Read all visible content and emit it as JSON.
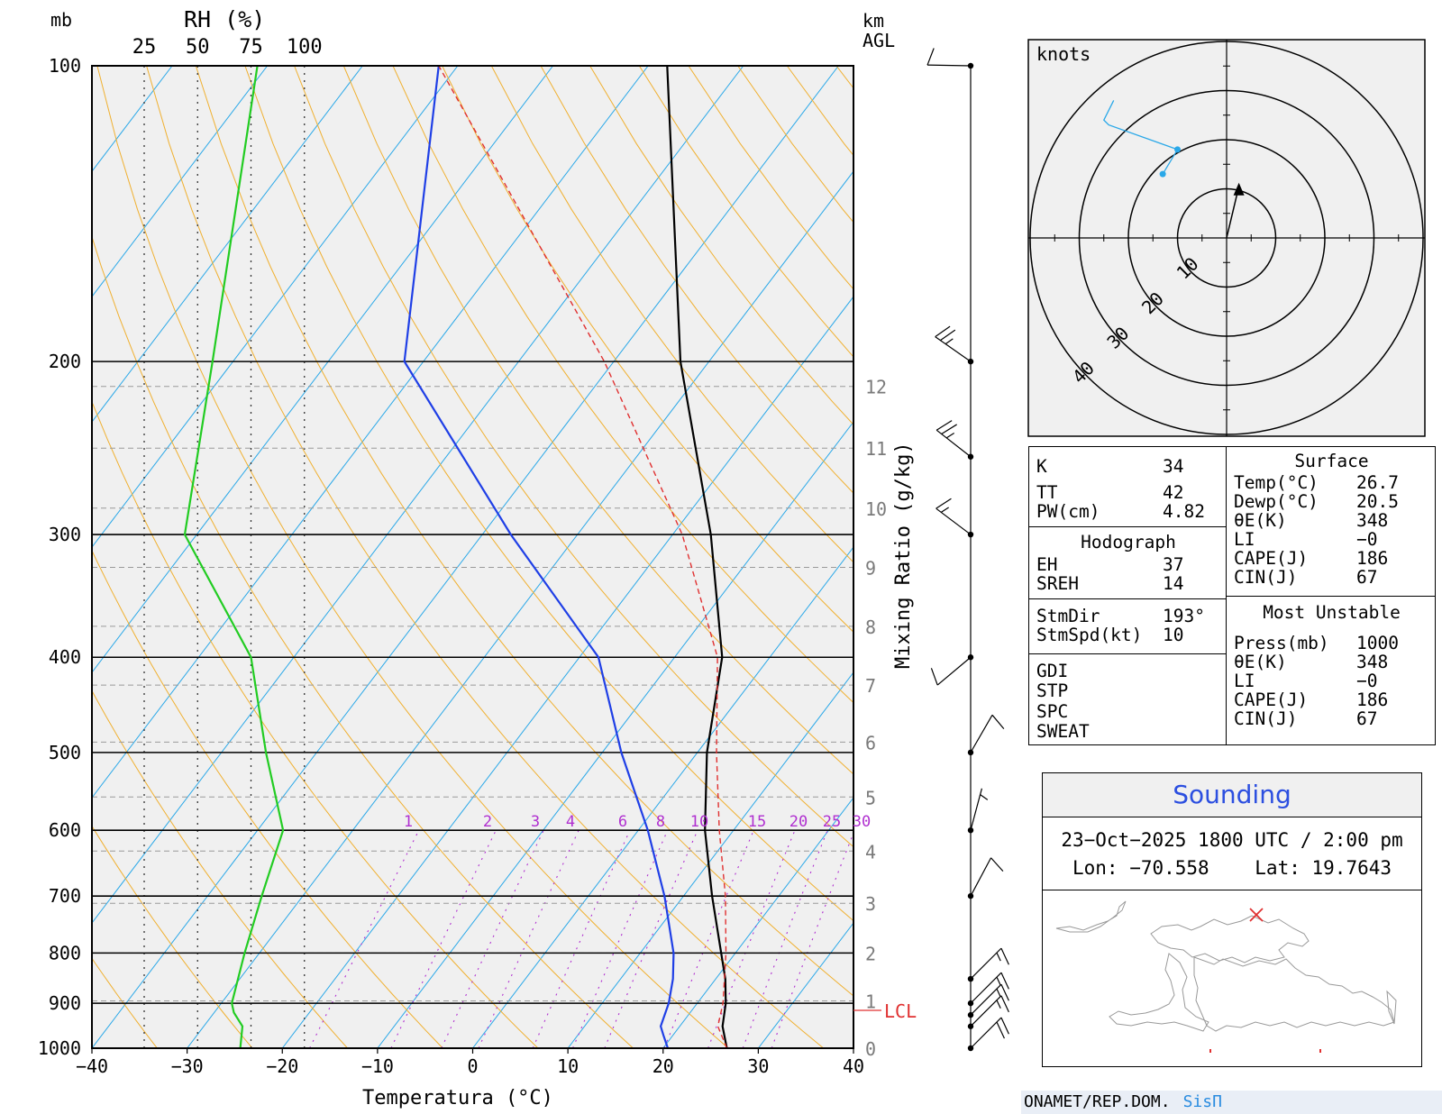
{
  "chart_data": {
    "type": "line",
    "title": "",
    "pressure_label": "mb",
    "xlabel": "Temperatura (°C)",
    "x_ticks": [
      "−40",
      "−30",
      "−20",
      "−10",
      "0",
      "10",
      "20",
      "30",
      "40"
    ],
    "pressure_levels": [
      100,
      200,
      300,
      400,
      500,
      600,
      700,
      800,
      900,
      1000
    ],
    "rh_label": "RH  (%)",
    "rh_ticks": [
      "25",
      "50",
      "75",
      "100"
    ],
    "km_label": [
      "km",
      "AGL"
    ],
    "km_ticks": [
      "12",
      "11",
      "10",
      "9",
      "8",
      "7",
      "6",
      "5",
      "4",
      "3",
      "2",
      "1",
      "0"
    ],
    "mixing_ratio_label": "Mixing Ratio (g/kg)",
    "mixing_ratio_ticks": [
      "1",
      "2",
      "3",
      "4",
      "6",
      "8",
      "10",
      "15",
      "20",
      "25",
      "30"
    ],
    "lcl_label": "LCL",
    "lcl_pressure": 900,
    "series": [
      {
        "role": "temperature",
        "color": "#000000",
        "points": [
          [
            1000,
            26.7
          ],
          [
            950,
            24.5
          ],
          [
            900,
            23
          ],
          [
            850,
            21
          ],
          [
            800,
            18.5
          ],
          [
            700,
            13
          ],
          [
            600,
            7
          ],
          [
            500,
            1
          ],
          [
            400,
            -5
          ],
          [
            300,
            -16
          ],
          [
            200,
            -33
          ],
          [
            100,
            -58
          ]
        ]
      },
      {
        "role": "dewpoint",
        "color": "#1f3fe6",
        "points": [
          [
            1000,
            20.5
          ],
          [
            970,
            19
          ],
          [
            950,
            18
          ],
          [
            900,
            17
          ],
          [
            850,
            15.5
          ],
          [
            800,
            13.5
          ],
          [
            700,
            8
          ],
          [
            600,
            1
          ],
          [
            500,
            -8
          ],
          [
            400,
            -18
          ],
          [
            300,
            -37
          ],
          [
            200,
            -62
          ],
          [
            100,
            -82
          ]
        ]
      },
      {
        "role": "parcel",
        "color": "#e03030",
        "points": [
          [
            1000,
            26.7
          ],
          [
            950,
            24
          ],
          [
            900,
            22.7
          ],
          [
            800,
            19
          ],
          [
            700,
            14.4
          ],
          [
            600,
            8.5
          ],
          [
            500,
            2
          ],
          [
            400,
            -5.5
          ],
          [
            300,
            -19
          ],
          [
            200,
            -41
          ],
          [
            100,
            -82
          ]
        ]
      },
      {
        "role": "relative_humidity",
        "color": "#22cc22",
        "points": [
          [
            1000,
            70
          ],
          [
            950,
            71
          ],
          [
            920,
            67
          ],
          [
            900,
            66
          ],
          [
            800,
            72
          ],
          [
            700,
            80
          ],
          [
            600,
            90
          ],
          [
            500,
            82
          ],
          [
            400,
            75
          ],
          [
            300,
            44
          ],
          [
            200,
            57
          ],
          [
            100,
            78
          ]
        ]
      }
    ],
    "wind_barbs": [
      {
        "p": 100,
        "dir": 271,
        "spd": 10
      },
      {
        "p": 200,
        "dir": 305,
        "spd": 25
      },
      {
        "p": 250,
        "dir": 308,
        "spd": 25
      },
      {
        "p": 300,
        "dir": 307,
        "spd": 15
      },
      {
        "p": 400,
        "dir": 230,
        "spd": 10
      },
      {
        "p": 500,
        "dir": 30,
        "spd": 10
      },
      {
        "p": 600,
        "dir": 15,
        "spd": 5
      },
      {
        "p": 700,
        "dir": 28,
        "spd": 10
      },
      {
        "p": 850,
        "dir": 45,
        "spd": 15
      },
      {
        "p": 900,
        "dir": 45,
        "spd": 15
      },
      {
        "p": 925,
        "dir": 45,
        "spd": 15
      },
      {
        "p": 950,
        "dir": 45,
        "spd": 15
      },
      {
        "p": 1000,
        "dir": 45,
        "spd": 20
      }
    ]
  },
  "hodograph": {
    "label": "knots",
    "ring_labels": [
      "10",
      "20",
      "30",
      "40"
    ],
    "trace": [
      [
        -13,
        13
      ],
      [
        -10,
        18
      ],
      [
        -24,
        23
      ],
      [
        -25,
        24
      ]
    ],
    "storm_vector": [
      2.5,
      10.5
    ]
  },
  "indices": {
    "K": "34",
    "TT": "42",
    "PW(cm)": "4.82",
    "hodograph_header": "Hodograph",
    "EH": "37",
    "SREH": "14",
    "StmDir": "193°",
    "StmSpd(kt)": "10",
    "extra": [
      "GDI",
      "STP",
      "SPC",
      "SWEAT"
    ],
    "surface_header": "Surface",
    "surface": [
      [
        "Temp(°C)",
        "26.7"
      ],
      [
        "Dewp(°C)",
        "20.5"
      ],
      [
        "θE(K)",
        "348"
      ],
      [
        "LI",
        "−0"
      ],
      [
        "CAPE(J)",
        "186"
      ],
      [
        "CIN(J)",
        "67"
      ]
    ],
    "mu_header": "Most Unstable",
    "mu": [
      [
        "Press(mb)",
        "1000"
      ],
      [
        "θE(K)",
        "348"
      ],
      [
        "LI",
        "−0"
      ],
      [
        "CAPE(J)",
        "186"
      ],
      [
        "CIN(J)",
        "67"
      ]
    ]
  },
  "sounding": {
    "title": "Sounding",
    "datetime": "23−Oct−2025 1800 UTC / 2:00 pm",
    "lon_label": "Lon:",
    "lon": "−70.558",
    "lat_label": "Lat:",
    "lat": "19.7643"
  },
  "footer": {
    "org": "ONAMET/REP.DOM.",
    "system": "SisΠ"
  },
  "colors": {
    "isotherm": "#2aa8e8",
    "adiabat": "#f0b030",
    "mixing": "#b030d0",
    "panel": "#f0f0f0"
  }
}
